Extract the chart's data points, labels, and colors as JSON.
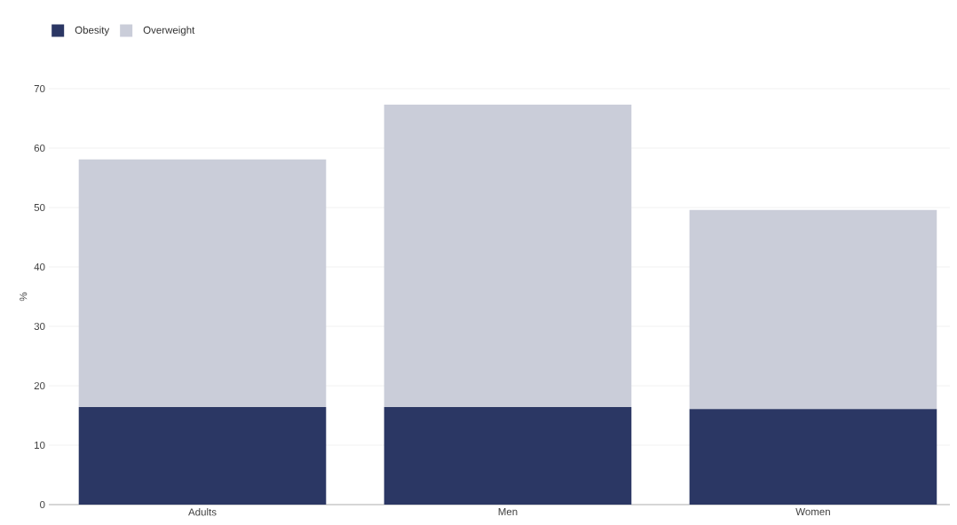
{
  "chart_data": {
    "type": "bar",
    "stacked": true,
    "ylabel": "%",
    "categories": [
      "Adults",
      "Men",
      "Women"
    ],
    "series": [
      {
        "name": "Obesity",
        "color": "#2b3764",
        "values": [
          16.4,
          16.4,
          16.1
        ]
      },
      {
        "name": "Overweight",
        "color": "#cacdd9",
        "values": [
          41.7,
          50.9,
          33.5
        ]
      }
    ],
    "ylim": [
      0,
      70
    ],
    "yticks": [
      0,
      10,
      20,
      30,
      40,
      50,
      60,
      70
    ],
    "grid": "y",
    "legend": "top left"
  }
}
